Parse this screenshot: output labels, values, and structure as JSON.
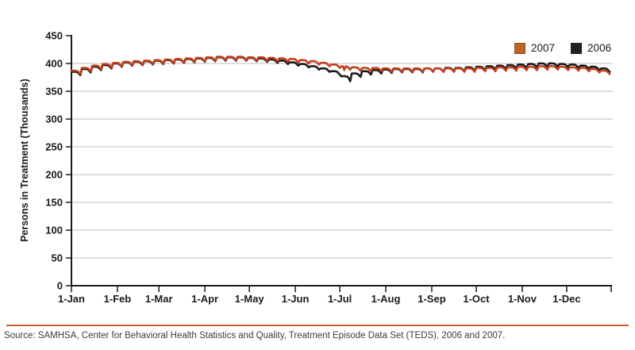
{
  "chart_data": {
    "type": "line",
    "title": "",
    "ylabel": "Persons in Treatment (Thousands)",
    "xlabel": "",
    "ylim": [
      0,
      450
    ],
    "y_ticks": [
      0,
      50,
      100,
      150,
      200,
      250,
      300,
      350,
      400,
      450
    ],
    "x_tick_labels": [
      "1-Jan",
      "1-Feb",
      "1-Mar",
      "1-Apr",
      "1-May",
      "1-Jun",
      "1-Jul",
      "1-Aug",
      "1-Sep",
      "1-Oct",
      "1-Nov",
      "1-Dec"
    ],
    "x_tick_days": [
      0,
      31,
      59,
      90,
      120,
      151,
      181,
      212,
      243,
      273,
      304,
      334
    ],
    "x_total_days": 365,
    "grid": "horizontal-only",
    "legend_position": "top-right-inside",
    "weekly_pattern_offsets": [
      0.8,
      1.2,
      1.2,
      1.0,
      0.3,
      -2.2,
      -5.0
    ],
    "series": [
      {
        "name": "2007",
        "color": "#C2401F",
        "swatch_color": "#BC6426",
        "swatch_border": "#8E4A1E",
        "weekly_values": [
          386,
          391,
          395,
          398,
          400,
          402,
          403,
          404,
          405,
          406,
          407,
          408,
          409,
          410,
          411,
          411,
          411,
          410,
          410,
          409,
          408,
          407,
          405,
          403,
          400,
          397,
          394,
          392,
          391,
          391,
          390,
          390,
          390,
          390,
          390,
          390,
          390,
          390,
          390,
          391,
          391,
          392,
          392,
          393,
          393,
          394,
          394,
          393,
          392,
          391,
          389,
          386,
          381
        ],
        "events": [
          {
            "day": 184,
            "offset": -7
          }
        ]
      },
      {
        "name": "2006",
        "color": "#1A1A1A",
        "swatch_color": "#231F20",
        "swatch_border": "#231F20",
        "weekly_values": [
          384,
          389,
          393,
          396,
          399,
          401,
          402,
          403,
          404,
          405,
          406,
          407,
          408,
          409,
          410,
          410,
          410,
          409,
          408,
          406,
          404,
          401,
          398,
          394,
          390,
          385,
          376,
          381,
          385,
          387,
          388,
          389,
          389,
          389,
          390,
          390,
          391,
          391,
          392,
          393,
          394,
          395,
          396,
          397,
          398,
          399,
          399,
          398,
          397,
          395,
          393,
          390,
          386
        ],
        "events": [
          {
            "day": 188,
            "offset": -3
          }
        ]
      }
    ]
  },
  "source_note": "Source: SAMHSA, Center for Behavioral Health Statistics and Quality, Treatment Episode Data Set (TEDS), 2006 and 2007.",
  "colors": {
    "axis": "#1A1A1A",
    "grid": "#BDBDBD",
    "accent_rule": "#C0612C",
    "tick_text": "#1A1A1A",
    "source_text": "#3C3C3C",
    "background": "#FFFFFF"
  }
}
